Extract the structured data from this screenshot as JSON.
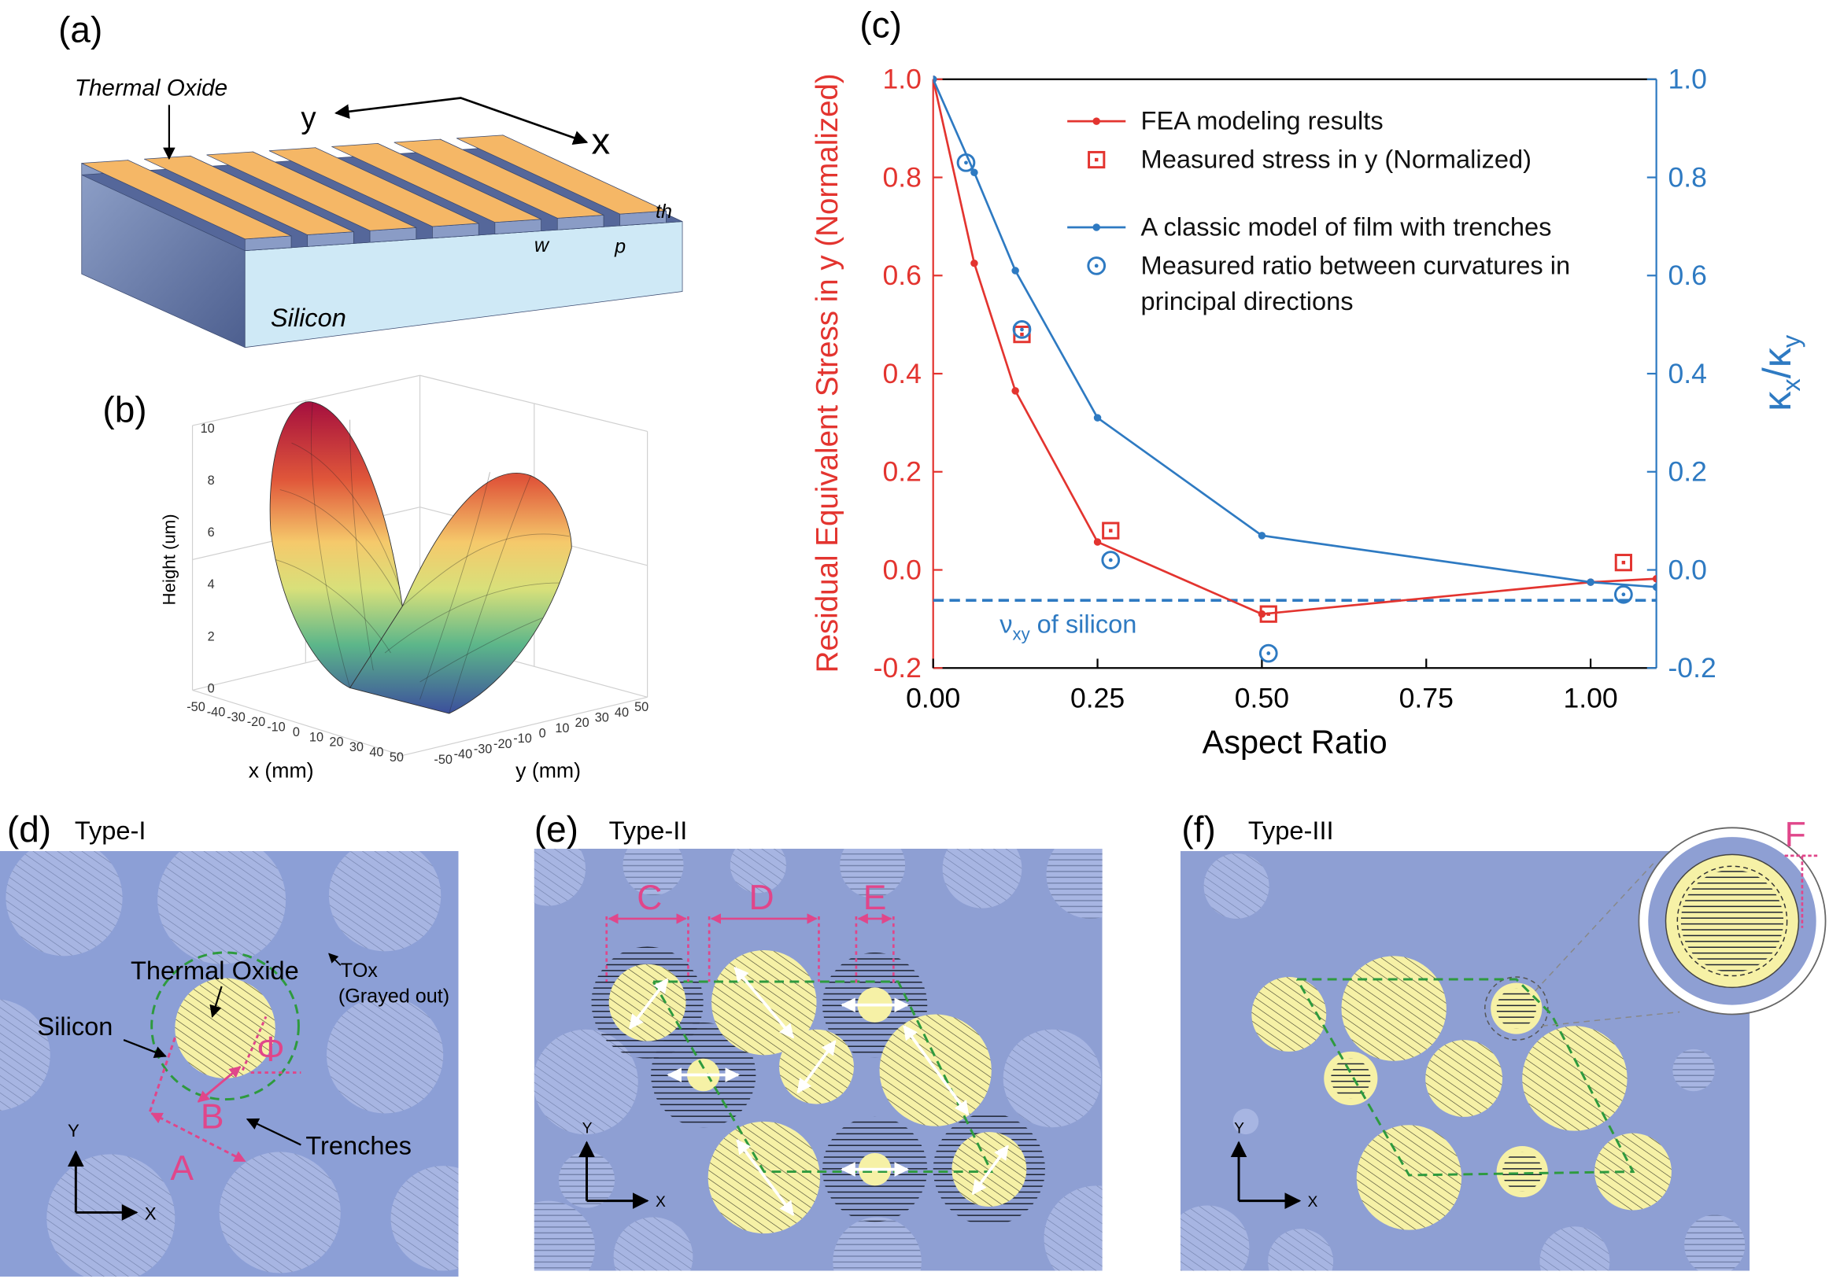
{
  "panels": {
    "a": {
      "label": "(a)",
      "thermal_oxide": "Thermal Oxide",
      "y": "y",
      "x": "x",
      "th": "th",
      "w": "w",
      "p": "p",
      "silicon": "Silicon"
    },
    "b": {
      "label": "(b)",
      "z_label": "Height (um)",
      "z_ticks": [
        0,
        2,
        4,
        6,
        8,
        10
      ],
      "x_ticks": [
        -50,
        -40,
        -30,
        -20,
        -10,
        0,
        10,
        20,
        30,
        40,
        50
      ],
      "y_ticks": [
        -50,
        -40,
        -30,
        -20,
        -10,
        0,
        10,
        20,
        30,
        40,
        50
      ],
      "x_label": "x (mm)",
      "y_label": "y (mm)"
    },
    "d": {
      "label": "(d)",
      "type": "Type-I",
      "thermal_oxide": "Thermal Oxide",
      "silicon": "Silicon",
      "tox": "TOx",
      "grayed_out": "(Grayed out)",
      "phi": "Φ",
      "b": "B",
      "a": "A",
      "trenches": "Trenches",
      "axis_y": "Y",
      "axis_x": "X"
    },
    "e": {
      "label": "(e)",
      "type": "Type-II",
      "c": "C",
      "d": "D",
      "e": "E",
      "axis_y": "Y",
      "axis_x": "X"
    },
    "f": {
      "label": "(f)",
      "type": "Type-III",
      "f": "F",
      "axis_y": "Y",
      "axis_x": "X"
    }
  },
  "chart_data": {
    "type": "line",
    "label": "(c)",
    "xlabel": "Aspect Ratio",
    "ylabel": "Residual Equivalent Stress in y (Normalized)",
    "y2label": {
      "base1": "κ",
      "sub1": "x",
      "sep": "/",
      "base2": "κ",
      "sub2": "y"
    },
    "xlim": [
      0,
      1.1
    ],
    "xticks": [
      {
        "value": 0,
        "label": "0.00"
      },
      0.25,
      {
        "value": 0.5,
        "label": "0.50"
      },
      0.75,
      {
        "value": 1,
        "label": "1.00"
      }
    ],
    "ylim": [
      -0.2,
      1.0
    ],
    "yticks": [
      -0.2,
      {
        "value": 0,
        "label": "0.0"
      },
      0.2,
      0.4,
      0.6,
      0.8,
      {
        "value": 1,
        "label": "1.0"
      }
    ],
    "y2lim": [
      -0.2,
      1.0
    ],
    "y2ticks": [
      -0.2,
      {
        "value": 0,
        "label": "0.0"
      },
      0.2,
      0.4,
      0.6,
      0.8,
      {
        "value": 1,
        "label": "1.0"
      }
    ],
    "series": [
      {
        "name": "FEA modeling results",
        "color": "#e3342f",
        "style": "line-dot",
        "x": [
          0,
          0.0625,
          0.125,
          0.25,
          0.5,
          1.0,
          1.1
        ],
        "values": [
          1.0,
          0.625,
          0.365,
          0.057,
          -0.09,
          -0.025,
          -0.018
        ]
      },
      {
        "name": "Measured stress in y (Normalized)",
        "color": "#e3342f",
        "style": "square",
        "x": [
          0.135,
          0.27,
          0.51,
          1.05
        ],
        "values": [
          0.48,
          0.08,
          -0.09,
          0.015
        ]
      },
      {
        "name": "A classic model of film with trenches",
        "color": "#2e7ac2",
        "style": "line-dot",
        "axis": "y2",
        "x": [
          0,
          0.0625,
          0.125,
          0.25,
          0.5,
          1.0,
          1.1
        ],
        "values": [
          1.0,
          0.81,
          0.61,
          0.31,
          0.07,
          -0.025,
          -0.035
        ]
      },
      {
        "name": "Measured ratio between curvatures in principal directions",
        "color": "#2e7ac2",
        "style": "circle",
        "axis": "y2",
        "x": [
          0.05,
          0.135,
          0.27,
          0.51,
          1.05
        ],
        "values": [
          0.83,
          0.49,
          0.02,
          -0.17,
          -0.05
        ]
      }
    ],
    "reference_line": {
      "value": -0.062,
      "axis": "y2",
      "color": "#2e7ac2",
      "symbol": "ν",
      "sub": "xy",
      "text": "of silicon"
    }
  }
}
